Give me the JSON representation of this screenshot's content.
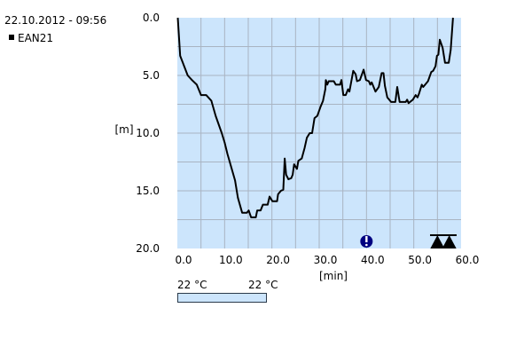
{
  "header": {
    "timestamp": "22.10.2012 - 09:56"
  },
  "legend": {
    "series_label": "EAN21",
    "marker_color": "#000000"
  },
  "colorbar": {
    "min_label": "22 °C",
    "max_label": "22 °C",
    "color": "#cce5fc"
  },
  "chart_data": {
    "type": "line",
    "title": "",
    "xlabel": "[min]",
    "ylabel": "[m]",
    "xlim": [
      0,
      60
    ],
    "ylim": [
      20,
      0
    ],
    "y_inverted": true,
    "grid": true,
    "legend_placement": "top-left",
    "background_color": "#cce5fc",
    "grid_color": "#a9b4c2",
    "line_color": "#000000",
    "x_ticks": [
      "0.0",
      "10.0",
      "20.0",
      "30.0",
      "40.0",
      "50.0",
      "60.0"
    ],
    "y_ticks": [
      "0.0",
      "5.0",
      "10.0",
      "15.0",
      "20.0"
    ],
    "series": [
      {
        "name": "EAN21",
        "points": [
          [
            0.1,
            0
          ],
          [
            0.6,
            3.3
          ],
          [
            1.25,
            4
          ],
          [
            2.2,
            5
          ],
          [
            3.1,
            5.4
          ],
          [
            4.1,
            5.8
          ],
          [
            5,
            6.7
          ],
          [
            6.1,
            6.7
          ],
          [
            7.2,
            7.2
          ],
          [
            8.1,
            8.5
          ],
          [
            9.4,
            10
          ],
          [
            10,
            10.8
          ],
          [
            10.6,
            11.8
          ],
          [
            12.2,
            14.1
          ],
          [
            12.8,
            15.6
          ],
          [
            13.7,
            16.9
          ],
          [
            14.7,
            16.9
          ],
          [
            15.1,
            16.7
          ],
          [
            15.6,
            17.3
          ],
          [
            16.6,
            17.3
          ],
          [
            16.9,
            16.7
          ],
          [
            17.6,
            16.7
          ],
          [
            18.1,
            16.2
          ],
          [
            19.1,
            16.2
          ],
          [
            19.5,
            15.5
          ],
          [
            20.1,
            15.9
          ],
          [
            21.1,
            15.9
          ],
          [
            21.3,
            15.3
          ],
          [
            21.9,
            15
          ],
          [
            22.4,
            14.9
          ],
          [
            22.7,
            12.2
          ],
          [
            23,
            13.6
          ],
          [
            23.5,
            14
          ],
          [
            24.1,
            13.9
          ],
          [
            24.4,
            13.6
          ],
          [
            24.7,
            12.7
          ],
          [
            25.3,
            13.1
          ],
          [
            25.6,
            12.4
          ],
          [
            26.3,
            12.2
          ],
          [
            26.9,
            11.3
          ],
          [
            27.4,
            10.4
          ],
          [
            28,
            10
          ],
          [
            28.5,
            10
          ],
          [
            29,
            8.7
          ],
          [
            29.6,
            8.5
          ],
          [
            30.3,
            7.7
          ],
          [
            30.8,
            7.2
          ],
          [
            31.3,
            6.2
          ],
          [
            31.4,
            5.4
          ],
          [
            31.7,
            5.8
          ],
          [
            32,
            5.5
          ],
          [
            33.1,
            5.5
          ],
          [
            33.5,
            5.8
          ],
          [
            34.4,
            5.8
          ],
          [
            34.7,
            5.4
          ],
          [
            35.1,
            6.7
          ],
          [
            35.6,
            6.7
          ],
          [
            36.1,
            6.2
          ],
          [
            36.4,
            6.4
          ],
          [
            37.2,
            4.6
          ],
          [
            37.7,
            4.9
          ],
          [
            38,
            5.5
          ],
          [
            38.6,
            5.4
          ],
          [
            39.4,
            4.5
          ],
          [
            39.9,
            5.4
          ],
          [
            40.5,
            5.5
          ],
          [
            40.8,
            5.8
          ],
          [
            41.1,
            5.6
          ],
          [
            41.9,
            6.4
          ],
          [
            42.6,
            6.0
          ],
          [
            43.2,
            4.8
          ],
          [
            43.6,
            4.8
          ],
          [
            43.9,
            5.9
          ],
          [
            44.4,
            6.9
          ],
          [
            45.2,
            7.3
          ],
          [
            46.1,
            7.3
          ],
          [
            46.5,
            6.0
          ],
          [
            47,
            7.3
          ],
          [
            48.3,
            7.3
          ],
          [
            48.6,
            7.1
          ],
          [
            48.9,
            7.4
          ],
          [
            49.8,
            7.1
          ],
          [
            50.4,
            6.7
          ],
          [
            50.8,
            6.9
          ],
          [
            51.1,
            6.6
          ],
          [
            51.7,
            5.8
          ],
          [
            52,
            6
          ],
          [
            53,
            5.5
          ],
          [
            53.7,
            4.7
          ],
          [
            54.1,
            4.6
          ],
          [
            54.6,
            4.2
          ],
          [
            54.9,
            3.3
          ],
          [
            55.2,
            3.2
          ],
          [
            55.5,
            1.9
          ],
          [
            56.1,
            2.6
          ],
          [
            56.6,
            3.9
          ],
          [
            57.4,
            3.9
          ],
          [
            57.8,
            2.8
          ],
          [
            58.3,
            0
          ]
        ]
      }
    ],
    "annotations": [
      {
        "type": "warning-marker",
        "x": 40,
        "color": "#000080"
      },
      {
        "type": "triangle-marker",
        "x": 55
      },
      {
        "type": "triangle-marker",
        "x": 57.5
      }
    ]
  }
}
